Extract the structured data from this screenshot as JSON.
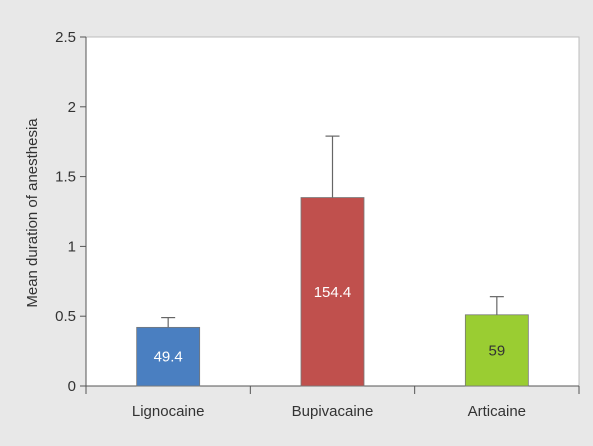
{
  "chart_data": {
    "type": "bar",
    "title": "",
    "xlabel": "",
    "ylabel": "Mean duration of anesthesia",
    "ylim": [
      0,
      2.5
    ],
    "yticks": [
      {
        "value": 0,
        "label": "0"
      },
      {
        "value": 0.5,
        "label": "0.5"
      },
      {
        "value": 1,
        "label": "1"
      },
      {
        "value": 1.5,
        "label": "1.5"
      },
      {
        "value": 2,
        "label": "2"
      },
      {
        "value": 2.5,
        "label": "2.5"
      }
    ],
    "grid": false,
    "categories": [
      "Lignocaine",
      "Bupivacaine",
      "Articaine"
    ],
    "values": [
      0.42,
      1.35,
      0.51
    ],
    "error_upper": [
      0.49,
      1.79,
      0.64
    ],
    "data_labels": [
      "49.4",
      "154.4",
      "59"
    ],
    "colors": [
      "#4a7fc1",
      "#c0504d",
      "#9acd32"
    ],
    "label_colors": [
      "#ffffff",
      "#ffffff",
      "#333333"
    ]
  }
}
